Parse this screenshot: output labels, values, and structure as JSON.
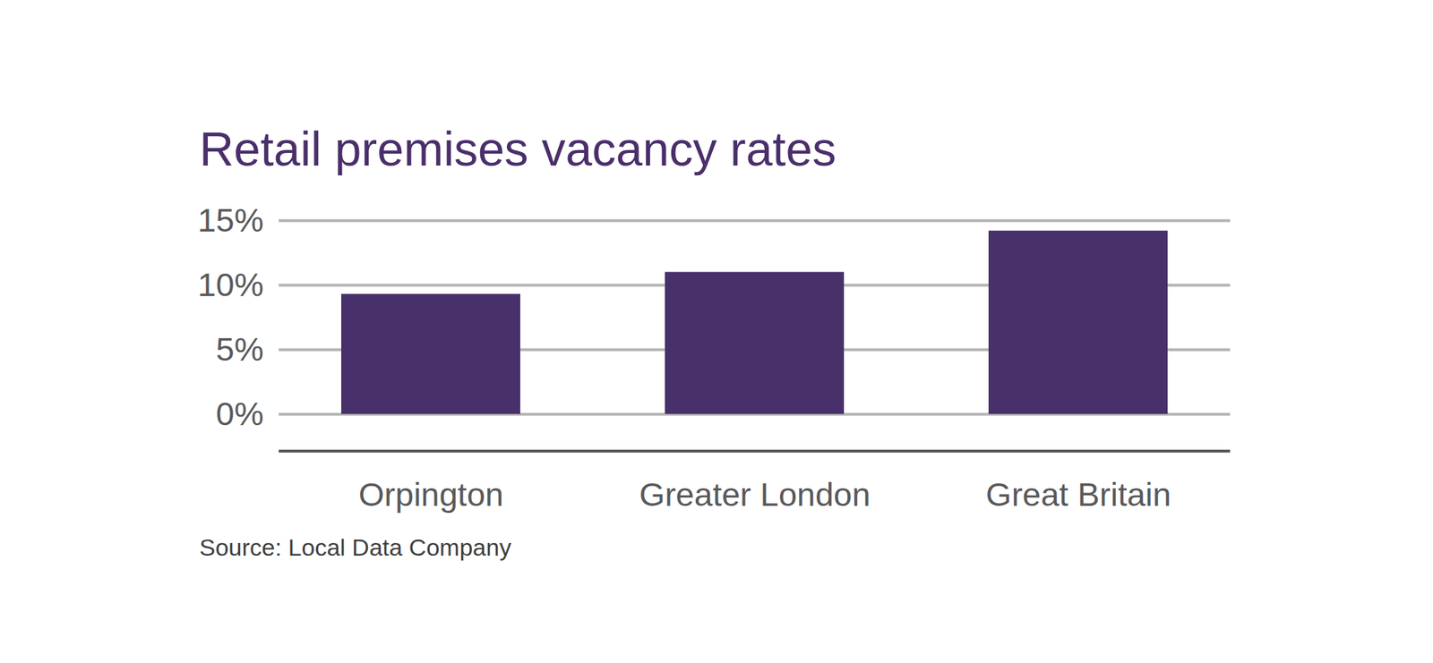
{
  "chart_data": {
    "type": "bar",
    "title": "Retail premises vacancy rates",
    "caption": "Source: Local Data Company",
    "categories": [
      "Orpington",
      "Greater London",
      "Great Britain"
    ],
    "values": [
      9.3,
      11.0,
      14.2
    ],
    "color": "#48316a",
    "ylim": [
      0,
      15
    ],
    "yticks": [
      {
        "value": 0,
        "label": "0%"
      },
      {
        "value": 5,
        "label": "5%"
      },
      {
        "value": 10,
        "label": "10%"
      },
      {
        "value": 15,
        "label": "15%"
      }
    ],
    "grid": true,
    "data_labels": false
  }
}
